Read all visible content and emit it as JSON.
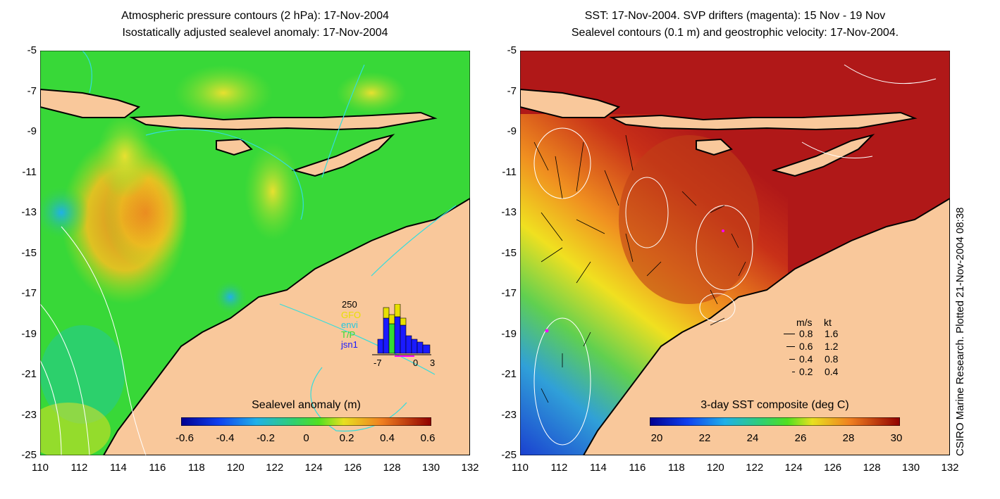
{
  "left_panel": {
    "title_line1": "Atmospheric pressure contours (2 hPa): 17-Nov-2004",
    "title_line2": "Isostatically adjusted sealevel anomaly: 17-Nov-2004",
    "colorbar_label": "Sealevel anomaly (m)",
    "colorbar_ticks": [
      "-0.6",
      "-0.4",
      "-0.2",
      "0",
      "0.2",
      "0.4",
      "0.6"
    ],
    "histogram": {
      "top_value": "250",
      "legend": [
        {
          "label": "GFO",
          "color": "#e8e000"
        },
        {
          "label": "envi",
          "color": "#22c8e0"
        },
        {
          "label": "T/P",
          "color": "#33dd33"
        },
        {
          "label": "jsn1",
          "color": "#1a1aff"
        }
      ],
      "axis_ticks": [
        "-7",
        "0",
        "3"
      ]
    }
  },
  "right_panel": {
    "title_line1": "SST: 17-Nov-2004. SVP drifters (magenta): 15 Nov - 19 Nov",
    "title_line2": "Sealevel contours (0.1 m) and geostrophic velocity: 17-Nov-2004.",
    "colorbar_label": "3-day SST composite (deg C)",
    "colorbar_ticks": [
      "20",
      "22",
      "24",
      "26",
      "28",
      "30"
    ],
    "velocity_legend": {
      "header_ms": "m/s",
      "header_kt": "kt",
      "rows": [
        {
          "ms": "0.8",
          "kt": "1.6"
        },
        {
          "ms": "0.6",
          "kt": "1.2"
        },
        {
          "ms": "0.4",
          "kt": "0.8"
        },
        {
          "ms": "0.2",
          "kt": "0.4"
        }
      ]
    }
  },
  "y_ticks": [
    "-5",
    "-7",
    "-9",
    "-11",
    "-13",
    "-15",
    "-17",
    "-19",
    "-21",
    "-23",
    "-25"
  ],
  "x_ticks": [
    "110",
    "112",
    "114",
    "116",
    "118",
    "120",
    "122",
    "124",
    "126",
    "128",
    "130",
    "132"
  ],
  "side_note": "CSIRO Marine Research. Plotted 21-Nov-2004 08:38",
  "colors": {
    "land": "#f9c89b",
    "ocean_left": "#38d838",
    "ocean_right": "#b01818",
    "contour_cyan": "#33dddd",
    "drifter": "#ff00ff"
  }
}
